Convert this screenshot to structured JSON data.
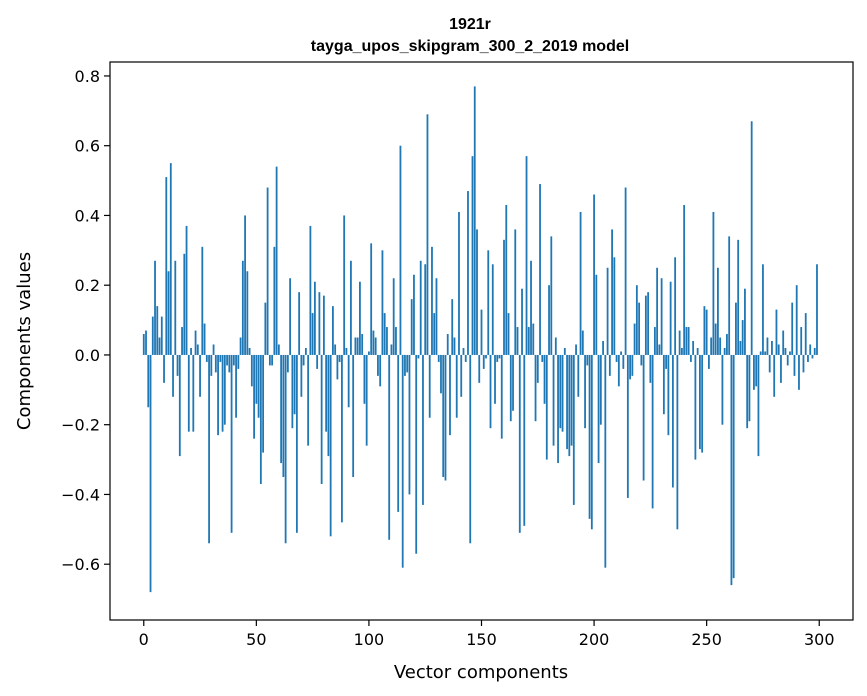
{
  "chart_data": {
    "type": "bar",
    "title": "1921r",
    "subtitle": "tayga_upos_skipgram_300_2_2019 model",
    "xlabel": "Vector components",
    "ylabel": "Components values",
    "xlim": [
      -15,
      315
    ],
    "ylim": [
      -0.76,
      0.84
    ],
    "xticks": [
      0,
      50,
      100,
      150,
      200,
      250,
      300
    ],
    "xtick_labels": [
      "0",
      "50",
      "100",
      "150",
      "200",
      "250",
      "300"
    ],
    "yticks": [
      -0.6,
      -0.4,
      -0.2,
      0.0,
      0.2,
      0.4,
      0.6,
      0.8
    ],
    "ytick_labels": [
      "−0.6",
      "−0.4",
      "−0.2",
      "0.0",
      "0.2",
      "0.4",
      "0.6",
      "0.8"
    ],
    "bar_color": "#1f77b4",
    "grid": false,
    "legend": "none",
    "x": "0..299 (component index)",
    "values": [
      0.06,
      0.07,
      -0.15,
      -0.68,
      0.11,
      0.27,
      0.14,
      0.05,
      0.11,
      -0.08,
      0.51,
      0.24,
      0.55,
      -0.12,
      0.27,
      -0.06,
      -0.29,
      0.08,
      0.29,
      0.37,
      -0.22,
      0.02,
      -0.22,
      0.07,
      0.03,
      -0.12,
      0.31,
      0.09,
      -0.02,
      -0.54,
      -0.06,
      0.03,
      -0.05,
      -0.23,
      -0.02,
      -0.22,
      -0.2,
      -0.03,
      -0.05,
      -0.51,
      -0.03,
      -0.18,
      -0.04,
      0.05,
      0.27,
      0.4,
      0.24,
      0.02,
      -0.09,
      -0.24,
      -0.14,
      -0.18,
      -0.37,
      -0.28,
      0.15,
      0.48,
      -0.03,
      -0.03,
      0.31,
      0.54,
      0.03,
      -0.31,
      -0.35,
      -0.54,
      -0.05,
      0.22,
      -0.21,
      -0.17,
      -0.51,
      0.18,
      -0.12,
      -0.03,
      0.02,
      -0.26,
      0.37,
      0.12,
      0.21,
      -0.04,
      0.18,
      -0.37,
      0.17,
      -0.22,
      -0.29,
      -0.52,
      0.14,
      0.03,
      -0.07,
      -0.02,
      -0.48,
      0.4,
      0.02,
      -0.15,
      0.27,
      -0.35,
      0.05,
      0.05,
      0.21,
      0.06,
      -0.14,
      -0.26,
      0.01,
      0.32,
      0.07,
      0.05,
      -0.06,
      -0.09,
      0.3,
      0.12,
      0.08,
      -0.53,
      0.03,
      0.22,
      0.08,
      -0.45,
      0.6,
      -0.61,
      -0.06,
      -0.05,
      -0.4,
      0.16,
      0.23,
      -0.57,
      -0.01,
      0.27,
      -0.43,
      0.26,
      0.69,
      -0.18,
      0.31,
      0.12,
      0.22,
      -0.02,
      -0.11,
      -0.35,
      -0.36,
      0.06,
      -0.23,
      0.16,
      0.05,
      -0.18,
      0.41,
      -0.12,
      0.02,
      -0.02,
      0.47,
      -0.54,
      0.57,
      0.77,
      0.36,
      -0.08,
      0.13,
      -0.04,
      -0.01,
      0.3,
      -0.21,
      0.26,
      -0.14,
      -0.02,
      -0.01,
      -0.24,
      0.33,
      0.43,
      0.12,
      -0.19,
      -0.16,
      0.36,
      0.08,
      -0.51,
      0.19,
      -0.49,
      0.57,
      0.08,
      0.27,
      0.09,
      -0.19,
      -0.08,
      0.49,
      -0.02,
      -0.14,
      -0.3,
      0.2,
      0.34,
      -0.26,
      0.05,
      -0.31,
      -0.21,
      -0.22,
      0.02,
      -0.27,
      -0.29,
      -0.26,
      -0.43,
      0.03,
      -0.12,
      0.41,
      0.07,
      -0.21,
      -0.03,
      -0.47,
      -0.5,
      0.46,
      0.23,
      -0.31,
      -0.2,
      0.04,
      -0.61,
      0.25,
      -0.06,
      0.36,
      0.28,
      -0.02,
      -0.09,
      0.01,
      -0.04,
      0.48,
      -0.41,
      -0.07,
      -0.06,
      0.09,
      0.2,
      0.15,
      -0.03,
      -0.36,
      0.17,
      0.18,
      -0.08,
      -0.44,
      0.08,
      0.25,
      0.03,
      0.22,
      -0.17,
      -0.04,
      -0.23,
      0.21,
      -0.38,
      0.28,
      -0.5,
      0.07,
      0.02,
      0.43,
      0.08,
      0.08,
      -0.02,
      0.04,
      -0.3,
      0.02,
      -0.27,
      -0.28,
      0.14,
      0.13,
      -0.04,
      0.05,
      0.41,
      0.09,
      0.25,
      0.05,
      -0.2,
      0.02,
      0.06,
      0.34,
      -0.66,
      -0.64,
      0.15,
      0.33,
      0.04,
      0.1,
      0.19,
      -0.21,
      -0.19,
      0.67,
      -0.1,
      -0.09,
      -0.29,
      0.01,
      0.26,
      0.01,
      0.05,
      -0.05,
      0.04,
      -0.12,
      0.13,
      0.03,
      -0.08,
      0.07,
      0.02,
      -0.03,
      0.01,
      0.15,
      -0.06,
      0.2,
      -0.1,
      0.08,
      -0.05,
      0.12,
      -0.02,
      0.03,
      -0.01,
      0.02,
      0.26
    ]
  }
}
